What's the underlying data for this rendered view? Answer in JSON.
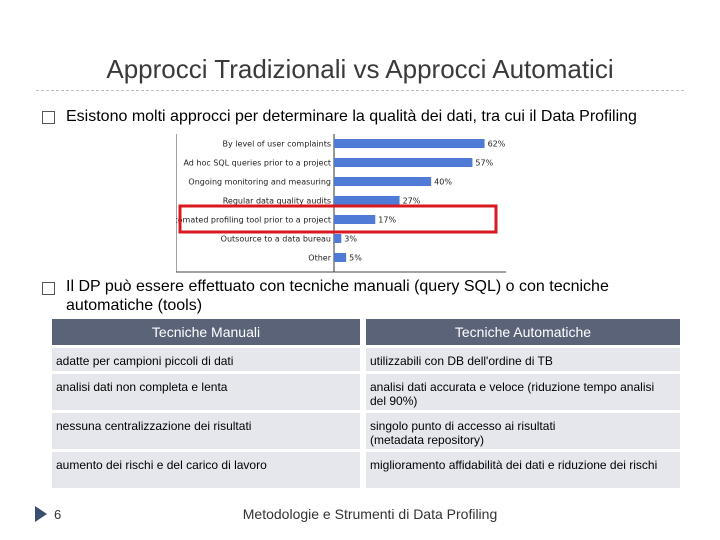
{
  "slide": {
    "title": "Approcci Tradizionali vs Approcci Automatici",
    "bullet1": "Esistono molti approcci per determinare la qualità dei dati, tra cui il Data Profiling",
    "bullet2_line1": "Il DP può essere effettuato con tecniche manuali (query SQL) o con tecniche",
    "bullet2_line2": "automatiche (tools)",
    "page_number": "6",
    "footer": "Metodologie e Strumenti di Data Profiling"
  },
  "chart_data": {
    "type": "bar",
    "orientation": "horizontal",
    "categories": [
      "By level of user complaints",
      "Ad hoc SQL queries prior to a project",
      "Ongoing monitoring and measuring",
      "Regular data quality audits",
      "Automated profiling tool prior to a project",
      "Outsource to a data bureau",
      "Other"
    ],
    "values": [
      62,
      57,
      40,
      27,
      17,
      3,
      5
    ],
    "value_labels": [
      "62%",
      "57%",
      "40%",
      "27%",
      "17%",
      "3%",
      "5%"
    ],
    "highlighted_category": "Automated profiling tool prior to a project",
    "xlim": [
      0,
      70
    ],
    "bar_color": "#4f7ad6",
    "highlight_color": "#d8191f"
  },
  "table": {
    "headers": [
      "Tecniche Manuali",
      "Tecniche Automatiche"
    ],
    "rows": [
      {
        "manual": [
          "adatte per campioni piccoli di dati"
        ],
        "auto": [
          "utilizzabili con DB dell'ordine di TB"
        ]
      },
      {
        "manual": [
          "analisi dati non completa e lenta"
        ],
        "auto": [
          "analisi dati accurata e veloce (riduzione tempo analisi",
          "del 90%)"
        ]
      },
      {
        "manual": [
          "nessuna centralizzazione dei risultati"
        ],
        "auto": [
          "singolo punto di accesso ai risultati",
          "(metadata repository)"
        ]
      },
      {
        "manual": [
          "aumento dei rischi e del carico di lavoro"
        ],
        "auto": [
          "miglioramento affidabilità dei dati e riduzione dei rischi"
        ]
      }
    ]
  },
  "colors": {
    "header_bg": "#5a6378",
    "cell_bg": "#e6e7ec",
    "title": "#3a3a3a",
    "footer_arrow": "#3b4e6e"
  }
}
